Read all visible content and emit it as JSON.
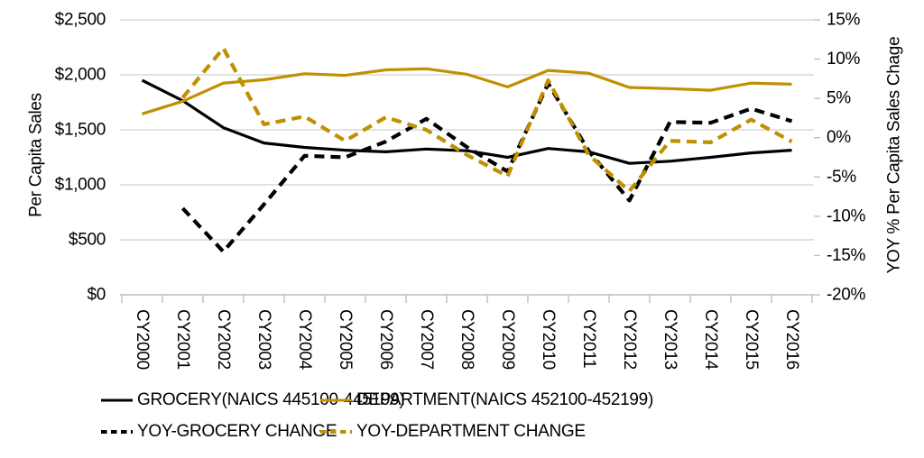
{
  "chart_data": {
    "type": "line",
    "title": "",
    "categories": [
      "CY2000",
      "CY2001",
      "CY2002",
      "CY2003",
      "CY2004",
      "CY2005",
      "CY2006",
      "CY2007",
      "CY2008",
      "CY2009",
      "CY2010",
      "CY2011",
      "CY2012",
      "CY2013",
      "CY2014",
      "CY2015",
      "CY2016"
    ],
    "series": [
      {
        "name": "GROCERY(NAICS 445100-445199)",
        "axis": "left",
        "line_style": "solid",
        "color": "#000000",
        "values": [
          1950,
          1765,
          1520,
          1380,
          1340,
          1315,
          1300,
          1325,
          1310,
          1250,
          1330,
          1300,
          1195,
          1215,
          1250,
          1290,
          1315
        ]
      },
      {
        "name": "DEPARTMENT(NAICS 452100-452199)",
        "axis": "left",
        "line_style": "solid",
        "color": "#BF9000",
        "values": [
          1645,
          1760,
          1925,
          1955,
          2010,
          1995,
          2045,
          2055,
          2005,
          1890,
          2040,
          2015,
          1885,
          1875,
          1860,
          1925,
          1915
        ]
      },
      {
        "name": "YOY-GROCERY CHANGE",
        "axis": "right",
        "line_style": "dashed",
        "color": "#000000",
        "values": [
          null,
          -9.0,
          -14.5,
          -8.5,
          -2.3,
          -2.5,
          -0.5,
          2.4,
          -1.2,
          -4.3,
          6.9,
          -1.7,
          -8.0,
          2.0,
          1.9,
          3.7,
          2.1
        ]
      },
      {
        "name": "YOY-DEPARTMENT CHANGE",
        "axis": "right",
        "line_style": "dashed",
        "color": "#BF9000",
        "values": [
          null,
          5.1,
          11.4,
          1.7,
          2.7,
          -0.4,
          2.6,
          1.0,
          -2.2,
          -4.9,
          7.3,
          -2.2,
          -6.8,
          -0.4,
          -0.6,
          2.3,
          -0.5
        ]
      }
    ],
    "left_axis": {
      "title": "Per Capita Sales",
      "min": 0,
      "max": 2500,
      "tick_labels": [
        "$0",
        "$500",
        "$1,000",
        "$1,500",
        "$2,000",
        "$2,500"
      ],
      "tick_values": [
        0,
        500,
        1000,
        1500,
        2000,
        2500
      ]
    },
    "right_axis": {
      "title": "YOY % Per Capita Sales Chage",
      "min": -20,
      "max": 15,
      "tick_labels": [
        "-20%",
        "-15%",
        "-10%",
        "-5%",
        "0%",
        "5%",
        "10%",
        "15%"
      ],
      "tick_values": [
        -20,
        -15,
        -10,
        -5,
        0,
        5,
        10,
        15
      ]
    },
    "grid": true,
    "legend_position": "bottom"
  },
  "colors": {
    "background": "#FFFFFF",
    "gridline": "#D9D9D9",
    "axis_line": "#BFBFBF",
    "text": "#000000",
    "series_black": "#000000",
    "series_gold": "#BF9000"
  }
}
